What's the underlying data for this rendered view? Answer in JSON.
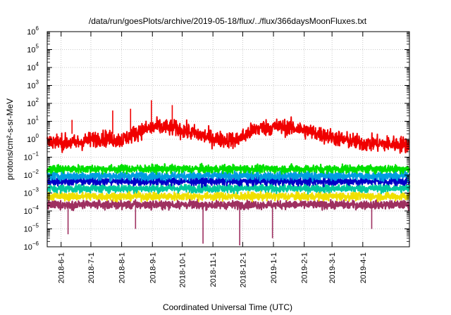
{
  "chart_data": {
    "type": "line",
    "title": "/data/run/goesPlots/archive/2019-05-18/flux/../flux/366daysMoonFluxes.txt",
    "xlabel": "Coordinated Universal Time (UTC)",
    "ylabel": "protons/cm²-s-sr-MeV",
    "x_range": [
      "2018-05-18",
      "2019-05-18"
    ],
    "yscale": "log",
    "ylim": [
      1e-06,
      1000000.0
    ],
    "y_tick_exponents": [
      -6,
      -5,
      -4,
      -3,
      -2,
      -1,
      0,
      1,
      2,
      3,
      4,
      5,
      6
    ],
    "x_ticks": [
      {
        "date": "2018-06-01",
        "label": "2018-6-1"
      },
      {
        "date": "2018-07-01",
        "label": "2018-7-1"
      },
      {
        "date": "2018-08-01",
        "label": "2018-8-1"
      },
      {
        "date": "2018-09-01",
        "label": "2018-9-1"
      },
      {
        "date": "2018-10-01",
        "label": "2018-10-1"
      },
      {
        "date": "2018-11-01",
        "label": "2018-11-1"
      },
      {
        "date": "2018-12-01",
        "label": "2018-12-1"
      },
      {
        "date": "2019-01-01",
        "label": "2019-1-1"
      },
      {
        "date": "2019-02-01",
        "label": "2019-2-1"
      },
      {
        "date": "2019-03-01",
        "label": "2019-3-1"
      },
      {
        "date": "2019-04-01",
        "label": "2019-4-1"
      }
    ],
    "grid": true,
    "series": [
      {
        "color": "#f00000",
        "profile": [
          {
            "date": "2018-05-18",
            "value": 0.8
          },
          {
            "date": "2018-06-15",
            "value": 0.6
          },
          {
            "date": "2018-07-10",
            "value": 1.2
          },
          {
            "date": "2018-08-01",
            "value": 0.9
          },
          {
            "date": "2018-08-20",
            "value": 3.0
          },
          {
            "date": "2018-09-05",
            "value": 5.0
          },
          {
            "date": "2018-09-25",
            "value": 4.0
          },
          {
            "date": "2018-10-15",
            "value": 2.0
          },
          {
            "date": "2018-11-05",
            "value": 1.0
          },
          {
            "date": "2018-11-25",
            "value": 0.9
          },
          {
            "date": "2018-12-15",
            "value": 4.0
          },
          {
            "date": "2019-01-05",
            "value": 5.0
          },
          {
            "date": "2019-01-25",
            "value": 4.0
          },
          {
            "date": "2019-02-15",
            "value": 2.0
          },
          {
            "date": "2019-03-10",
            "value": 1.0
          },
          {
            "date": "2019-04-01",
            "value": 0.6
          },
          {
            "date": "2019-05-18",
            "value": 0.5
          }
        ],
        "spikes": [
          {
            "date": "2018-08-31",
            "value": 150
          },
          {
            "date": "2018-09-21",
            "value": 80
          },
          {
            "date": "2018-06-12",
            "value": 12
          },
          {
            "date": "2018-07-23",
            "value": 40
          },
          {
            "date": "2018-08-10",
            "value": 50
          }
        ]
      },
      {
        "color": "#00e000",
        "level": 0.022
      },
      {
        "color": "#009ee0",
        "level": 0.009
      },
      {
        "color": "#0000c8",
        "level": 0.0045
      },
      {
        "color": "#00c8a0",
        "level": 0.0018
      },
      {
        "color": "#f0e000",
        "level": 0.00065
      },
      {
        "color": "#9e3060",
        "level": 0.00022
      }
    ],
    "series_dips": [
      {
        "date": "2018-10-22",
        "value": 1.5e-06
      },
      {
        "date": "2018-11-28",
        "value": 1.2e-06
      },
      {
        "date": "2018-12-31",
        "value": 3e-06
      },
      {
        "date": "2018-06-08",
        "value": 5e-06
      },
      {
        "date": "2018-08-15",
        "value": 1e-05
      },
      {
        "date": "2019-04-10",
        "value": 1e-05
      }
    ]
  }
}
